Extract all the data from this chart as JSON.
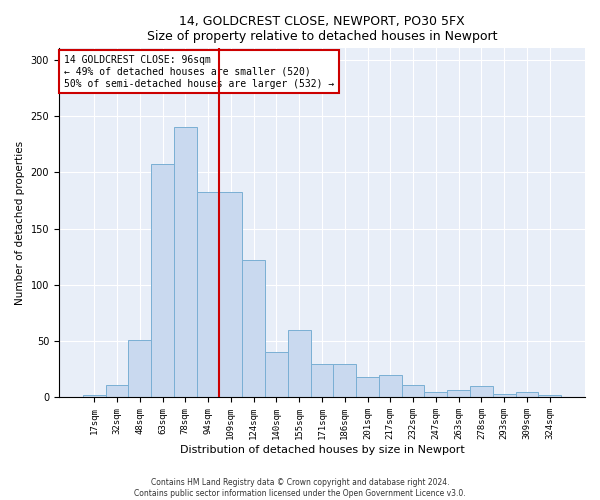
{
  "title1": "14, GOLDCREST CLOSE, NEWPORT, PO30 5FX",
  "title2": "Size of property relative to detached houses in Newport",
  "xlabel": "Distribution of detached houses by size in Newport",
  "ylabel": "Number of detached properties",
  "bar_labels": [
    "17sqm",
    "32sqm",
    "48sqm",
    "63sqm",
    "78sqm",
    "94sqm",
    "109sqm",
    "124sqm",
    "140sqm",
    "155sqm",
    "171sqm",
    "186sqm",
    "201sqm",
    "217sqm",
    "232sqm",
    "247sqm",
    "263sqm",
    "278sqm",
    "293sqm",
    "309sqm",
    "324sqm"
  ],
  "bar_values": [
    2,
    11,
    51,
    207,
    240,
    182,
    182,
    122,
    40,
    60,
    30,
    30,
    18,
    20,
    11,
    5,
    7,
    10,
    3,
    5,
    2
  ],
  "bar_color": "#c9d9ef",
  "bar_edge_color": "#7aafd4",
  "vline_color": "#cc0000",
  "annotation_text": "14 GOLDCREST CLOSE: 96sqm\n← 49% of detached houses are smaller (520)\n50% of semi-detached houses are larger (532) →",
  "annotation_box_color": "#ffffff",
  "annotation_box_edge": "#cc0000",
  "ylim": [
    0,
    310
  ],
  "yticks": [
    0,
    50,
    100,
    150,
    200,
    250,
    300
  ],
  "background_color": "#e8eef8",
  "footer1": "Contains HM Land Registry data © Crown copyright and database right 2024.",
  "footer2": "Contains public sector information licensed under the Open Government Licence v3.0."
}
